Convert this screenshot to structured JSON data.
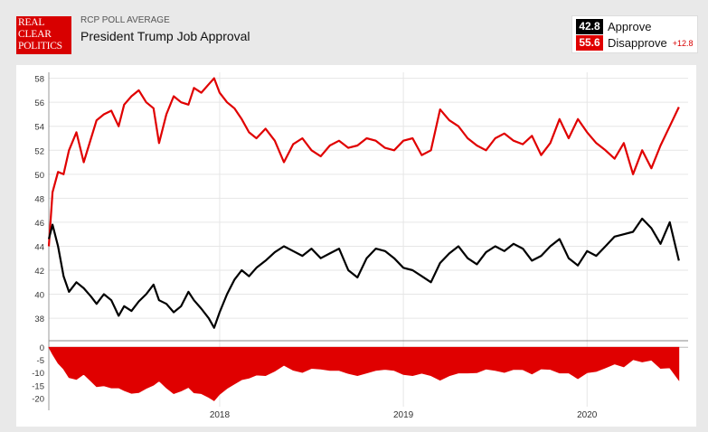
{
  "header": {
    "logo_lines": [
      "REAL",
      "CLEAR",
      "POLITICS"
    ],
    "kicker": "RCP POLL AVERAGE",
    "title": "President Trump Job Approval"
  },
  "legend": {
    "approve_value": "42.8",
    "approve_label": "Approve",
    "disapprove_value": "55.6",
    "disapprove_label": "Disapprove",
    "spread": "+12.8"
  },
  "colors": {
    "approve": "#000000",
    "disapprove": "#e00000",
    "spread_fill": "#e00000"
  },
  "chart_data": {
    "type": "line",
    "title": "President Trump Job Approval",
    "xlim": [
      2017.07,
      2020.55
    ],
    "ylim": [
      36.5,
      58.5
    ],
    "yticks": [
      38,
      40,
      42,
      44,
      46,
      48,
      50,
      52,
      54,
      56,
      58
    ],
    "xticks": [
      {
        "label": "2018",
        "value": 2018.0
      },
      {
        "label": "2019",
        "value": 2019.0
      },
      {
        "label": "2020",
        "value": 2020.0
      }
    ],
    "series": [
      {
        "name": "Approve",
        "x": [
          2017.07,
          2017.09,
          2017.12,
          2017.15,
          2017.18,
          2017.22,
          2017.26,
          2017.3,
          2017.33,
          2017.37,
          2017.41,
          2017.45,
          2017.48,
          2017.52,
          2017.56,
          2017.6,
          2017.64,
          2017.67,
          2017.71,
          2017.75,
          2017.79,
          2017.83,
          2017.86,
          2017.9,
          2017.94,
          2017.97,
          2018.0,
          2018.04,
          2018.08,
          2018.12,
          2018.16,
          2018.2,
          2018.25,
          2018.3,
          2018.35,
          2018.4,
          2018.45,
          2018.5,
          2018.55,
          2018.6,
          2018.65,
          2018.7,
          2018.75,
          2018.8,
          2018.85,
          2018.9,
          2018.95,
          2019.0,
          2019.05,
          2019.1,
          2019.15,
          2019.2,
          2019.25,
          2019.3,
          2019.35,
          2019.4,
          2019.45,
          2019.5,
          2019.55,
          2019.6,
          2019.65,
          2019.7,
          2019.75,
          2019.8,
          2019.85,
          2019.9,
          2019.95,
          2020.0,
          2020.05,
          2020.1,
          2020.15,
          2020.2,
          2020.25,
          2020.3,
          2020.35,
          2020.4,
          2020.45,
          2020.5
        ],
        "values": [
          44.6,
          45.8,
          44.0,
          41.5,
          40.2,
          41.0,
          40.5,
          39.8,
          39.2,
          40.0,
          39.5,
          38.2,
          39.0,
          38.6,
          39.4,
          40.0,
          40.8,
          39.5,
          39.2,
          38.5,
          39.0,
          40.2,
          39.5,
          38.8,
          38.0,
          37.2,
          38.5,
          40.0,
          41.2,
          42.0,
          41.5,
          42.2,
          42.8,
          43.5,
          44.0,
          43.6,
          43.2,
          43.8,
          43.0,
          43.4,
          43.8,
          42.0,
          41.4,
          43.0,
          43.8,
          43.6,
          43.0,
          42.2,
          42.0,
          41.5,
          41.0,
          42.6,
          43.4,
          44.0,
          43.0,
          42.5,
          43.5,
          44.0,
          43.6,
          44.2,
          43.8,
          42.8,
          43.2,
          44.0,
          44.6,
          43.0,
          42.4,
          43.6,
          43.2,
          44.0,
          44.8,
          45.0,
          45.2,
          46.3,
          45.5,
          44.2,
          46.0,
          42.8
        ]
      },
      {
        "name": "Disapprove",
        "x": [
          2017.07,
          2017.09,
          2017.12,
          2017.15,
          2017.18,
          2017.22,
          2017.26,
          2017.3,
          2017.33,
          2017.37,
          2017.41,
          2017.45,
          2017.48,
          2017.52,
          2017.56,
          2017.6,
          2017.64,
          2017.67,
          2017.71,
          2017.75,
          2017.79,
          2017.83,
          2017.86,
          2017.9,
          2017.94,
          2017.97,
          2018.0,
          2018.04,
          2018.08,
          2018.12,
          2018.16,
          2018.2,
          2018.25,
          2018.3,
          2018.35,
          2018.4,
          2018.45,
          2018.5,
          2018.55,
          2018.6,
          2018.65,
          2018.7,
          2018.75,
          2018.8,
          2018.85,
          2018.9,
          2018.95,
          2019.0,
          2019.05,
          2019.1,
          2019.15,
          2019.2,
          2019.25,
          2019.3,
          2019.35,
          2019.4,
          2019.45,
          2019.5,
          2019.55,
          2019.6,
          2019.65,
          2019.7,
          2019.75,
          2019.8,
          2019.85,
          2019.9,
          2019.95,
          2020.0,
          2020.05,
          2020.1,
          2020.15,
          2020.2,
          2020.25,
          2020.3,
          2020.35,
          2020.4,
          2020.45,
          2020.5
        ],
        "values": [
          44.0,
          48.5,
          50.2,
          50.0,
          52.0,
          53.5,
          51.0,
          53.0,
          54.5,
          55.0,
          55.3,
          54.0,
          55.8,
          56.5,
          57.0,
          56.0,
          55.5,
          52.6,
          55.0,
          56.5,
          56.0,
          55.8,
          57.2,
          56.8,
          57.5,
          58.0,
          56.8,
          56.0,
          55.5,
          54.6,
          53.5,
          53.0,
          53.8,
          52.8,
          51.0,
          52.5,
          53.0,
          52.0,
          51.5,
          52.4,
          52.8,
          52.2,
          52.4,
          53.0,
          52.8,
          52.2,
          52.0,
          52.8,
          53.0,
          51.6,
          52.0,
          55.4,
          54.5,
          54.0,
          53.0,
          52.4,
          52.0,
          53.0,
          53.4,
          52.8,
          52.5,
          53.2,
          51.6,
          52.6,
          54.6,
          53.0,
          54.6,
          53.5,
          52.6,
          52.0,
          51.3,
          52.6,
          50.0,
          52.0,
          50.5,
          52.4,
          54.0,
          55.6
        ]
      }
    ],
    "spread_panel": {
      "name": "Spread",
      "yticks": [
        0,
        -5,
        -10,
        -15,
        -20
      ],
      "ylim": [
        -21,
        1.5
      ]
    }
  }
}
